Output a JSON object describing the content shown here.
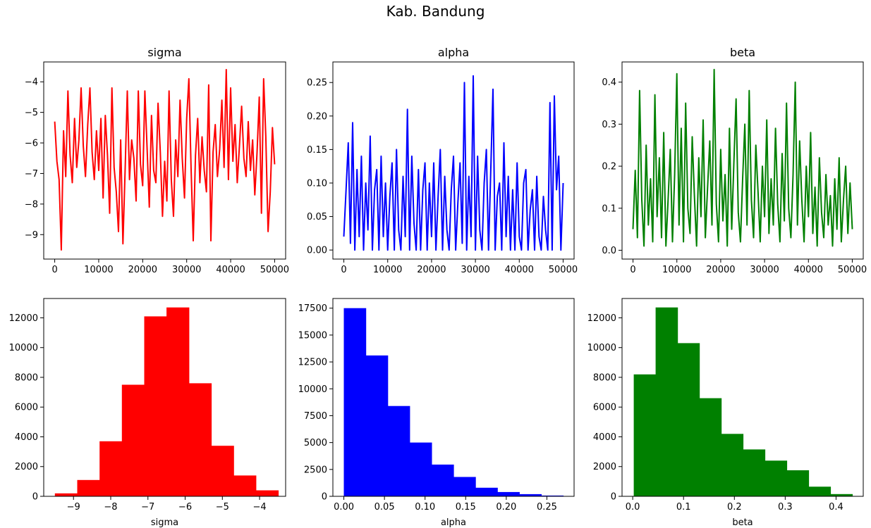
{
  "figure": {
    "suptitle": "Kab. Bandung"
  },
  "chart_data": [
    {
      "type": "line",
      "title": "sigma",
      "xlabel": "",
      "ylabel": "",
      "color": "#ff0000",
      "xlim": [
        -2500,
        52500
      ],
      "ylim": [
        -9.8,
        -3.35
      ],
      "xticks": [
        0,
        10000,
        20000,
        30000,
        40000,
        50000
      ],
      "yticks": [
        -9,
        -8,
        -7,
        -6,
        -5,
        -4
      ],
      "ytick_labels": [
        "−9",
        "−8",
        "−7",
        "−6",
        "−5",
        "−4"
      ],
      "series": [
        {
          "x": [
            0,
            500,
            1000,
            1500,
            2000,
            2500,
            3000,
            3500,
            4000,
            4500,
            5000,
            5500,
            6000,
            6500,
            7000,
            7500,
            8000,
            8500,
            9000,
            9500,
            10000,
            10500,
            11000,
            11500,
            12000,
            12500,
            13000,
            13500,
            14000,
            14500,
            15000,
            15500,
            16000,
            16500,
            17000,
            17500,
            18000,
            18500,
            19000,
            19500,
            20000,
            20500,
            21000,
            21500,
            22000,
            22500,
            23000,
            23500,
            24000,
            24500,
            25000,
            25500,
            26000,
            26500,
            27000,
            27500,
            28000,
            28500,
            29000,
            29500,
            30000,
            30500,
            31000,
            31500,
            32000,
            32500,
            33000,
            33500,
            34000,
            34500,
            35000,
            35500,
            36000,
            36500,
            37000,
            37500,
            38000,
            38500,
            39000,
            39500,
            40000,
            40500,
            41000,
            41500,
            42000,
            42500,
            43000,
            43500,
            44000,
            44500,
            45000,
            45500,
            46000,
            46500,
            47000,
            47500,
            48000,
            48500,
            49000,
            49500,
            50000
          ],
          "y": [
            -5.3,
            -6.6,
            -7.2,
            -9.5,
            -5.6,
            -7.1,
            -4.3,
            -6.4,
            -7.3,
            -5.2,
            -6.8,
            -5.9,
            -4.2,
            -6.1,
            -7.1,
            -5.4,
            -4.2,
            -6.3,
            -7.2,
            -5.6,
            -6.9,
            -5.2,
            -7.8,
            -5.1,
            -6.4,
            -8.3,
            -4.2,
            -6.8,
            -7.6,
            -8.9,
            -5.9,
            -9.3,
            -6.9,
            -4.3,
            -7.2,
            -5.9,
            -6.5,
            -7.9,
            -4.3,
            -6.7,
            -7.4,
            -4.3,
            -6.2,
            -8.1,
            -5.1,
            -6.9,
            -7.3,
            -4.7,
            -6.3,
            -8.4,
            -6.6,
            -7.9,
            -4.3,
            -7.2,
            -8.4,
            -5.9,
            -7.1,
            -4.6,
            -6.5,
            -7.8,
            -5.2,
            -3.9,
            -6.8,
            -9.2,
            -6.4,
            -5.2,
            -7.3,
            -5.8,
            -6.9,
            -7.6,
            -4.1,
            -9.2,
            -6.3,
            -5.4,
            -7.1,
            -6.2,
            -4.6,
            -6.8,
            -3.6,
            -7.2,
            -4.2,
            -6.6,
            -5.4,
            -7.3,
            -6.1,
            -4.8,
            -6.5,
            -7.1,
            -5.3,
            -6.9,
            -5.9,
            -7.7,
            -6.3,
            -4.5,
            -8.3,
            -3.9,
            -5.8,
            -8.9,
            -7.6,
            -5.5,
            -6.7
          ]
        }
      ]
    },
    {
      "type": "line",
      "title": "alpha",
      "xlabel": "",
      "ylabel": "",
      "color": "#0000ff",
      "xlim": [
        -2500,
        52500
      ],
      "ylim": [
        -0.0135,
        0.2807
      ],
      "xticks": [
        0,
        10000,
        20000,
        30000,
        40000,
        50000
      ],
      "yticks": [
        0,
        0.05,
        0.1,
        0.15,
        0.2,
        0.25
      ],
      "ytick_labels": [
        "0.00",
        "0.05",
        "0.10",
        "0.15",
        "0.20",
        "0.25"
      ],
      "series": [
        {
          "x": [
            0,
            500,
            1000,
            1500,
            2000,
            2500,
            3000,
            3500,
            4000,
            4500,
            5000,
            5500,
            6000,
            6500,
            7000,
            7500,
            8000,
            8500,
            9000,
            9500,
            10000,
            10500,
            11000,
            11500,
            12000,
            12500,
            13000,
            13500,
            14000,
            14500,
            15000,
            15500,
            16000,
            16500,
            17000,
            17500,
            18000,
            18500,
            19000,
            19500,
            20000,
            20500,
            21000,
            21500,
            22000,
            22500,
            23000,
            23500,
            24000,
            24500,
            25000,
            25500,
            26000,
            26500,
            27000,
            27500,
            28000,
            28500,
            29000,
            29500,
            30000,
            30500,
            31000,
            31500,
            32000,
            32500,
            33000,
            33500,
            34000,
            34500,
            35000,
            35500,
            36000,
            36500,
            37000,
            37500,
            38000,
            38500,
            39000,
            39500,
            40000,
            40500,
            41000,
            41500,
            42000,
            42500,
            43000,
            43500,
            44000,
            44500,
            45000,
            45500,
            46000,
            46500,
            47000,
            47500,
            48000,
            48500,
            49000,
            49500,
            50000
          ],
          "y": [
            0.02,
            0.09,
            0.16,
            0.01,
            0.19,
            0.0,
            0.12,
            0.02,
            0.14,
            0.0,
            0.1,
            0.03,
            0.17,
            0.0,
            0.09,
            0.12,
            0.0,
            0.14,
            0.02,
            0.1,
            0.0,
            0.08,
            0.13,
            0.0,
            0.15,
            0.03,
            0.0,
            0.11,
            0.02,
            0.21,
            0.0,
            0.14,
            0.04,
            0.0,
            0.12,
            0.0,
            0.09,
            0.13,
            0.0,
            0.1,
            0.02,
            0.13,
            0.0,
            0.08,
            0.15,
            0.0,
            0.11,
            0.03,
            0.0,
            0.09,
            0.14,
            0.0,
            0.07,
            0.13,
            0.01,
            0.25,
            0.0,
            0.11,
            0.02,
            0.26,
            0.0,
            0.14,
            0.03,
            0.0,
            0.1,
            0.15,
            0.0,
            0.12,
            0.24,
            0.0,
            0.08,
            0.1,
            0.0,
            0.16,
            0.02,
            0.11,
            0.0,
            0.09,
            0.0,
            0.13,
            0.02,
            0.0,
            0.1,
            0.12,
            0.0,
            0.06,
            0.09,
            0.0,
            0.11,
            0.02,
            0.0,
            0.08,
            0.03,
            0.0,
            0.22,
            0.0,
            0.23,
            0.09,
            0.14,
            0.0,
            0.1
          ]
        }
      ]
    },
    {
      "type": "line",
      "title": "beta",
      "xlabel": "",
      "ylabel": "",
      "color": "#008000",
      "xlim": [
        -2500,
        52500
      ],
      "ylim": [
        -0.021,
        0.448
      ],
      "xticks": [
        0,
        10000,
        20000,
        30000,
        40000,
        50000
      ],
      "yticks": [
        0,
        0.1,
        0.2,
        0.3,
        0.4
      ],
      "ytick_labels": [
        "0.0",
        "0.1",
        "0.2",
        "0.3",
        "0.4"
      ],
      "series": [
        {
          "x": [
            0,
            500,
            1000,
            1500,
            2000,
            2500,
            3000,
            3500,
            4000,
            4500,
            5000,
            5500,
            6000,
            6500,
            7000,
            7500,
            8000,
            8500,
            9000,
            9500,
            10000,
            10500,
            11000,
            11500,
            12000,
            12500,
            13000,
            13500,
            14000,
            14500,
            15000,
            15500,
            16000,
            16500,
            17000,
            17500,
            18000,
            18500,
            19000,
            19500,
            20000,
            20500,
            21000,
            21500,
            22000,
            22500,
            23000,
            23500,
            24000,
            24500,
            25000,
            25500,
            26000,
            26500,
            27000,
            27500,
            28000,
            28500,
            29000,
            29500,
            30000,
            30500,
            31000,
            31500,
            32000,
            32500,
            33000,
            33500,
            34000,
            34500,
            35000,
            35500,
            36000,
            36500,
            37000,
            37500,
            38000,
            38500,
            39000,
            39500,
            40000,
            40500,
            41000,
            41500,
            42000,
            42500,
            43000,
            43500,
            44000,
            44500,
            45000,
            45500,
            46000,
            46500,
            47000,
            47500,
            48000,
            48500,
            49000,
            49500,
            50000
          ],
          "y": [
            0.05,
            0.19,
            0.03,
            0.38,
            0.12,
            0.01,
            0.25,
            0.06,
            0.17,
            0.02,
            0.37,
            0.08,
            0.22,
            0.03,
            0.28,
            0.01,
            0.12,
            0.24,
            0.02,
            0.18,
            0.42,
            0.06,
            0.29,
            0.02,
            0.35,
            0.1,
            0.04,
            0.27,
            0.13,
            0.01,
            0.22,
            0.08,
            0.31,
            0.03,
            0.15,
            0.26,
            0.06,
            0.43,
            0.11,
            0.02,
            0.24,
            0.07,
            0.18,
            0.01,
            0.29,
            0.05,
            0.21,
            0.36,
            0.09,
            0.02,
            0.17,
            0.3,
            0.06,
            0.38,
            0.12,
            0.03,
            0.25,
            0.14,
            0.02,
            0.2,
            0.08,
            0.31,
            0.04,
            0.17,
            0.06,
            0.29,
            0.11,
            0.02,
            0.23,
            0.07,
            0.35,
            0.1,
            0.03,
            0.18,
            0.4,
            0.06,
            0.26,
            0.12,
            0.02,
            0.2,
            0.08,
            0.28,
            0.04,
            0.15,
            0.01,
            0.22,
            0.09,
            0.03,
            0.18,
            0.06,
            0.13,
            0.01,
            0.17,
            0.05,
            0.22,
            0.02,
            0.12,
            0.2,
            0.04,
            0.16,
            0.05
          ]
        }
      ]
    },
    {
      "type": "bar",
      "title": "",
      "xlabel": "sigma",
      "ylabel": "",
      "color": "#ff0000",
      "xlim": [
        -9.8,
        -3.3
      ],
      "ylim": [
        0,
        13300
      ],
      "xticks": [
        -9,
        -8,
        -7,
        -6,
        -5,
        -4
      ],
      "xtick_labels": [
        "−9",
        "−8",
        "−7",
        "−6",
        "−5",
        "−4"
      ],
      "yticks": [
        0,
        2000,
        4000,
        6000,
        8000,
        10000,
        12000
      ],
      "ytick_labels": [
        "0",
        "2000",
        "4000",
        "6000",
        "8000",
        "10000",
        "12000"
      ],
      "bin_edges": [
        -9.5,
        -8.9,
        -8.3,
        -7.7,
        -7.1,
        -6.5,
        -5.9,
        -5.3,
        -4.7,
        -4.1,
        -3.5
      ],
      "values": [
        200,
        1100,
        3700,
        7500,
        12100,
        12700,
        7600,
        3400,
        1400,
        400
      ]
    },
    {
      "type": "bar",
      "title": "",
      "xlabel": "alpha",
      "ylabel": "",
      "color": "#0000ff",
      "xlim": [
        -0.0135,
        0.2835
      ],
      "ylim": [
        0,
        18400
      ],
      "xticks": [
        0,
        0.05,
        0.1,
        0.15,
        0.2,
        0.25
      ],
      "xtick_labels": [
        "0.00",
        "0.05",
        "0.10",
        "0.15",
        "0.20",
        "0.25"
      ],
      "yticks": [
        0,
        2500,
        5000,
        7500,
        10000,
        12500,
        15000,
        17500
      ],
      "ytick_labels": [
        "0",
        "2500",
        "5000",
        "7500",
        "10000",
        "12500",
        "15000",
        "17500"
      ],
      "bin_edges": [
        0,
        0.027,
        0.054,
        0.081,
        0.108,
        0.135,
        0.162,
        0.189,
        0.216,
        0.243,
        0.27
      ],
      "values": [
        17500,
        13100,
        8400,
        5000,
        2950,
        1800,
        800,
        400,
        200,
        70
      ]
    },
    {
      "type": "bar",
      "title": "",
      "xlabel": "beta",
      "ylabel": "",
      "color": "#008000",
      "xlim": [
        -0.021,
        0.4535
      ],
      "ylim": [
        0,
        13300
      ],
      "xticks": [
        0,
        0.1,
        0.2,
        0.3,
        0.4
      ],
      "xtick_labels": [
        "0.0",
        "0.1",
        "0.2",
        "0.3",
        "0.4"
      ],
      "yticks": [
        0,
        2000,
        4000,
        6000,
        8000,
        10000,
        12000
      ],
      "ytick_labels": [
        "0",
        "2000",
        "4000",
        "6000",
        "8000",
        "10000",
        "12000"
      ],
      "bin_edges": [
        0.002,
        0.045,
        0.088,
        0.131,
        0.174,
        0.217,
        0.26,
        0.303,
        0.346,
        0.389,
        0.432
      ],
      "values": [
        8200,
        12700,
        10300,
        6600,
        4200,
        3150,
        2400,
        1750,
        650,
        150
      ]
    }
  ]
}
